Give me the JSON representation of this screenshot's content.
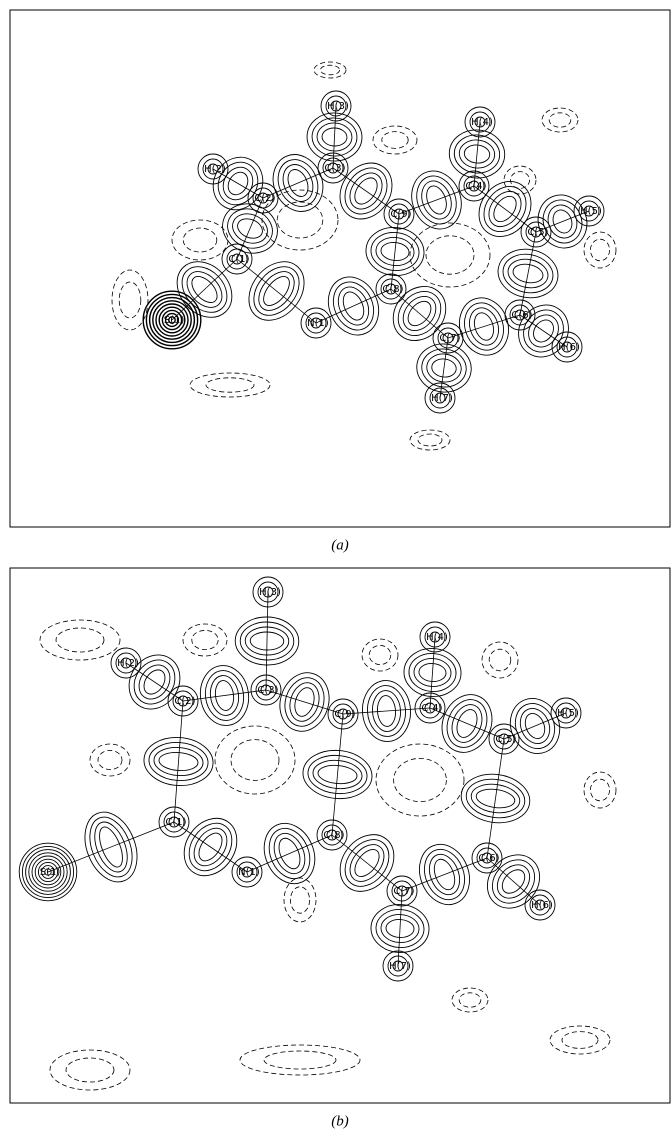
{
  "panels": [
    {
      "caption": "(a)",
      "atoms": [
        "H(3)",
        "H(4)",
        "H(2)",
        "C(3)",
        "C(4)",
        "C(2)",
        "C(9)",
        "H(5)",
        "C(5)",
        "C(1)",
        "S(1)",
        "N(1)",
        "C(8)",
        "C(6)",
        "C(7)",
        "H(6)",
        "H(7)"
      ]
    },
    {
      "caption": "(b)",
      "atoms": [
        "H(3)",
        "H(4)",
        "H(2)",
        "C(3)",
        "C(4)",
        "C(2)",
        "C(9)",
        "H(5)",
        "C(5)",
        "C(1)",
        "S(1)",
        "N(1)",
        "C(8)",
        "C(6)",
        "C(7)",
        "H(6)",
        "H(7)"
      ]
    }
  ]
}
